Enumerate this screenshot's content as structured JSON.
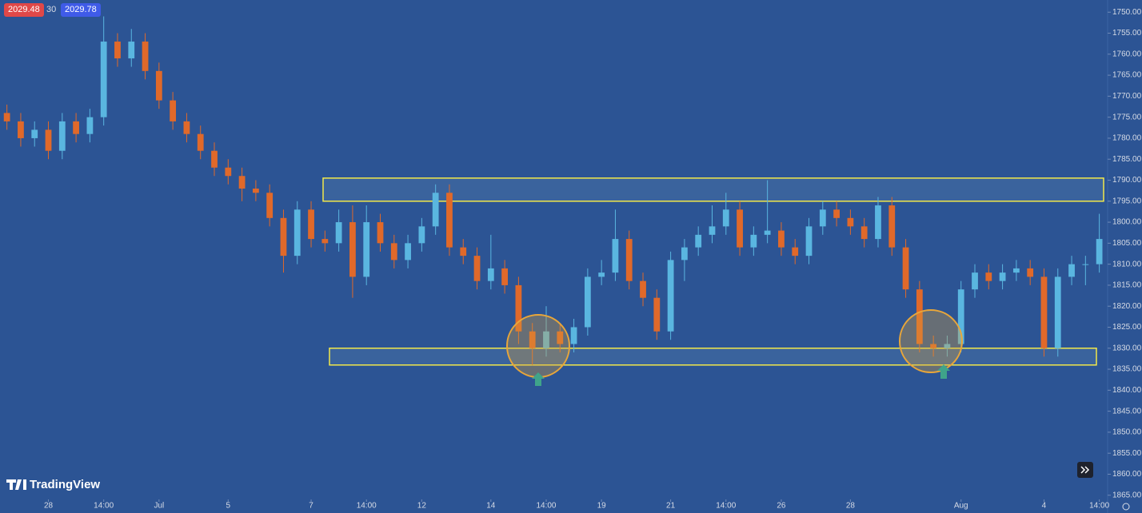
{
  "header": {
    "bid": "2029.48",
    "spread": "30",
    "ask": "2029.78"
  },
  "branding": "TradingView",
  "chart_data": {
    "type": "candlestick",
    "up_color": "#e0692a",
    "down_color": "#5ab6e0",
    "open": [
      1774,
      1776,
      1780,
      1778,
      1783,
      1776,
      1779,
      1775,
      1757,
      1761,
      1757,
      1764,
      1771,
      1776,
      1779,
      1783,
      1787,
      1789,
      1792,
      1793,
      1799,
      1808,
      1797,
      1804,
      1805,
      1800,
      1813,
      1800,
      1805,
      1809,
      1805,
      1801,
      1793,
      1806,
      1808,
      1814,
      1811,
      1815,
      1826,
      1830,
      1826,
      1829,
      1825,
      1813,
      1812,
      1804,
      1814,
      1818,
      1826,
      1809,
      1806,
      1803,
      1801,
      1797,
      1806,
      1803,
      1802,
      1806,
      1808,
      1801,
      1797,
      1799,
      1801,
      1804,
      1796,
      1806,
      1816,
      1829,
      1830,
      1829,
      1816,
      1812,
      1814,
      1812,
      1811,
      1813,
      1830,
      1813,
      1810,
      1810
    ],
    "high": [
      1778,
      1782,
      1782,
      1785,
      1785,
      1781,
      1781,
      1777,
      1763,
      1763,
      1766,
      1773,
      1778,
      1781,
      1785,
      1789,
      1791,
      1795,
      1795,
      1801,
      1812,
      1810,
      1806,
      1807,
      1807,
      1818,
      1815,
      1807,
      1811,
      1811,
      1807,
      1803,
      1808,
      1810,
      1816,
      1816,
      1817,
      1829,
      1834,
      1832,
      1831,
      1831,
      1827,
      1815,
      1814,
      1816,
      1820,
      1828,
      1828,
      1814,
      1808,
      1805,
      1803,
      1808,
      1808,
      1805,
      1808,
      1810,
      1810,
      1803,
      1801,
      1803,
      1806,
      1806,
      1808,
      1818,
      1831,
      1832,
      1832,
      1831,
      1818,
      1816,
      1816,
      1814,
      1815,
      1832,
      1832,
      1815,
      1815,
      1812
    ],
    "low": [
      1772,
      1774,
      1776,
      1776,
      1774,
      1774,
      1773,
      1751,
      1755,
      1754,
      1755,
      1762,
      1769,
      1774,
      1777,
      1781,
      1785,
      1787,
      1790,
      1791,
      1797,
      1795,
      1795,
      1802,
      1797,
      1796,
      1796,
      1798,
      1803,
      1803,
      1799,
      1791,
      1791,
      1804,
      1806,
      1803,
      1809,
      1813,
      1824,
      1820,
      1824,
      1823,
      1811,
      1809,
      1797,
      1802,
      1812,
      1816,
      1807,
      1804,
      1801,
      1796,
      1793,
      1795,
      1801,
      1790,
      1800,
      1804,
      1799,
      1795,
      1795,
      1797,
      1799,
      1794,
      1794,
      1804,
      1814,
      1827,
      1827,
      1814,
      1810,
      1810,
      1810,
      1809,
      1809,
      1811,
      1811,
      1808,
      1808,
      1798
    ],
    "close": [
      1776,
      1780,
      1778,
      1783,
      1776,
      1779,
      1775,
      1757,
      1761,
      1757,
      1764,
      1771,
      1776,
      1779,
      1783,
      1787,
      1789,
      1792,
      1793,
      1799,
      1808,
      1797,
      1804,
      1805,
      1800,
      1813,
      1800,
      1805,
      1809,
      1805,
      1801,
      1793,
      1806,
      1808,
      1814,
      1811,
      1815,
      1826,
      1830,
      1826,
      1829,
      1825,
      1813,
      1812,
      1804,
      1814,
      1818,
      1826,
      1809,
      1806,
      1803,
      1801,
      1797,
      1806,
      1803,
      1802,
      1806,
      1808,
      1801,
      1797,
      1799,
      1801,
      1804,
      1796,
      1806,
      1816,
      1829,
      1830,
      1829,
      1816,
      1812,
      1814,
      1812,
      1811,
      1813,
      1830,
      1813,
      1810,
      1810,
      1804
    ],
    "xlim": [
      -0.5,
      79.6
    ],
    "xticks": [
      {
        "value": 3,
        "label": "28"
      },
      {
        "value": 7,
        "label": "14:00"
      },
      {
        "value": 11,
        "label": "Jul"
      },
      {
        "value": 16,
        "label": "5"
      },
      {
        "value": 22,
        "label": "7"
      },
      {
        "value": 26,
        "label": "14:00"
      },
      {
        "value": 30,
        "label": "12"
      },
      {
        "value": 35,
        "label": "14"
      },
      {
        "value": 39,
        "label": "14:00"
      },
      {
        "value": 43,
        "label": "19"
      },
      {
        "value": 48,
        "label": "21"
      },
      {
        "value": 52,
        "label": "14:00"
      },
      {
        "value": 56,
        "label": "26"
      },
      {
        "value": 61,
        "label": "28"
      },
      {
        "value": 69,
        "label": "Aug"
      },
      {
        "value": 75,
        "label": "4"
      },
      {
        "value": 79,
        "label": "14:00"
      }
    ],
    "ylim": [
      1747.1,
      1866
    ],
    "inverted": true,
    "yticks": [
      {
        "value": 1750,
        "label": "1750.00"
      },
      {
        "value": 1755,
        "label": "1755.00"
      },
      {
        "value": 1760,
        "label": "1760.00"
      },
      {
        "value": 1765,
        "label": "1765.00"
      },
      {
        "value": 1770,
        "label": "1770.00"
      },
      {
        "value": 1775,
        "label": "1775.00"
      },
      {
        "value": 1780,
        "label": "1780.00"
      },
      {
        "value": 1785,
        "label": "1785.00"
      },
      {
        "value": 1790,
        "label": "1790.00"
      },
      {
        "value": 1795,
        "label": "1795.00"
      },
      {
        "value": 1800,
        "label": "1800.00"
      },
      {
        "value": 1805,
        "label": "1805.00"
      },
      {
        "value": 1810,
        "label": "1810.00"
      },
      {
        "value": 1815,
        "label": "1815.00"
      },
      {
        "value": 1820,
        "label": "1820.00"
      },
      {
        "value": 1825,
        "label": "1825.00"
      },
      {
        "value": 1830,
        "label": "1830.00"
      },
      {
        "value": 1835,
        "label": "1835.00"
      },
      {
        "value": 1840,
        "label": "1840.00"
      },
      {
        "value": 1845,
        "label": "1845.00"
      },
      {
        "value": 1850,
        "label": "1850.00"
      },
      {
        "value": 1855,
        "label": "1855.00"
      },
      {
        "value": 1860,
        "label": "1860.00"
      },
      {
        "value": 1865,
        "label": "1865.00"
      }
    ],
    "zones": [
      {
        "range": [
          1789.5,
          1795
        ],
        "color": "#f2e84a"
      },
      {
        "range": [
          1830,
          1834
        ],
        "color": "#f2e84a"
      }
    ]
  }
}
